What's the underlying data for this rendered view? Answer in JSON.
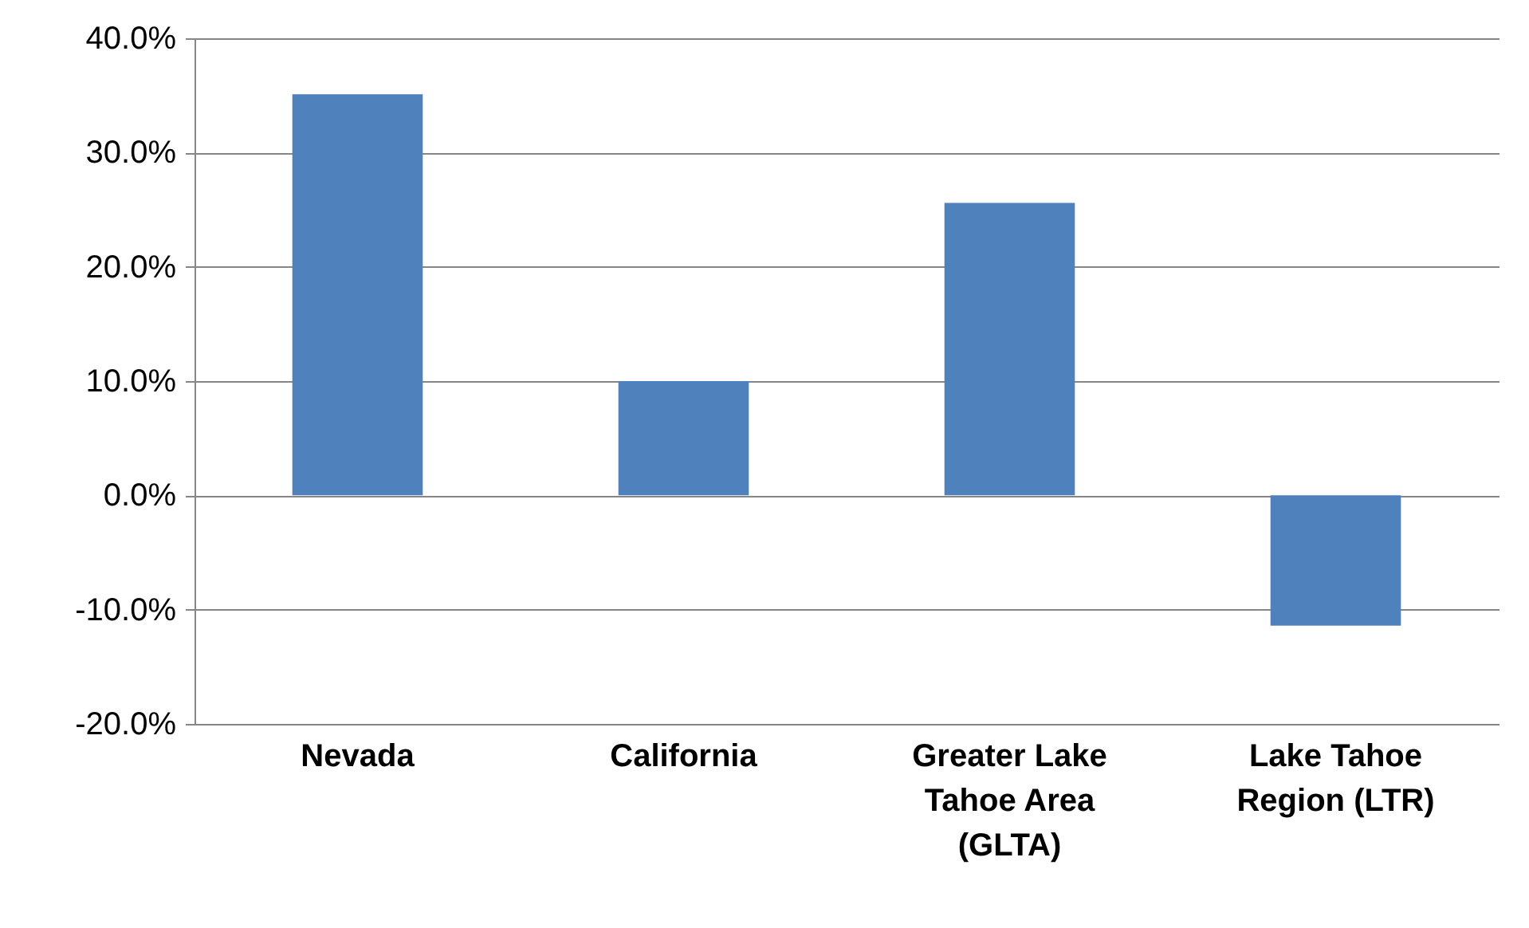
{
  "chart_data": {
    "type": "bar",
    "categories": [
      "Nevada",
      "California",
      "Greater Lake Tahoe Area (GLTA)",
      "Lake Tahoe Region (LTR)"
    ],
    "values": [
      35.1,
      10.0,
      25.6,
      -11.4
    ],
    "color": "#4f81bd",
    "ylim": [
      -20,
      40
    ],
    "yticks": [
      {
        "value": -20,
        "label": "-20.0%"
      },
      {
        "value": -10,
        "label": "-10.0%"
      },
      {
        "value": 0,
        "label": "0.0%"
      },
      {
        "value": 10,
        "label": "10.0%"
      },
      {
        "value": 20,
        "label": "20.0%"
      },
      {
        "value": 30,
        "label": "30.0%"
      },
      {
        "value": 40,
        "label": "40.0%"
      }
    ],
    "grid": "y"
  }
}
